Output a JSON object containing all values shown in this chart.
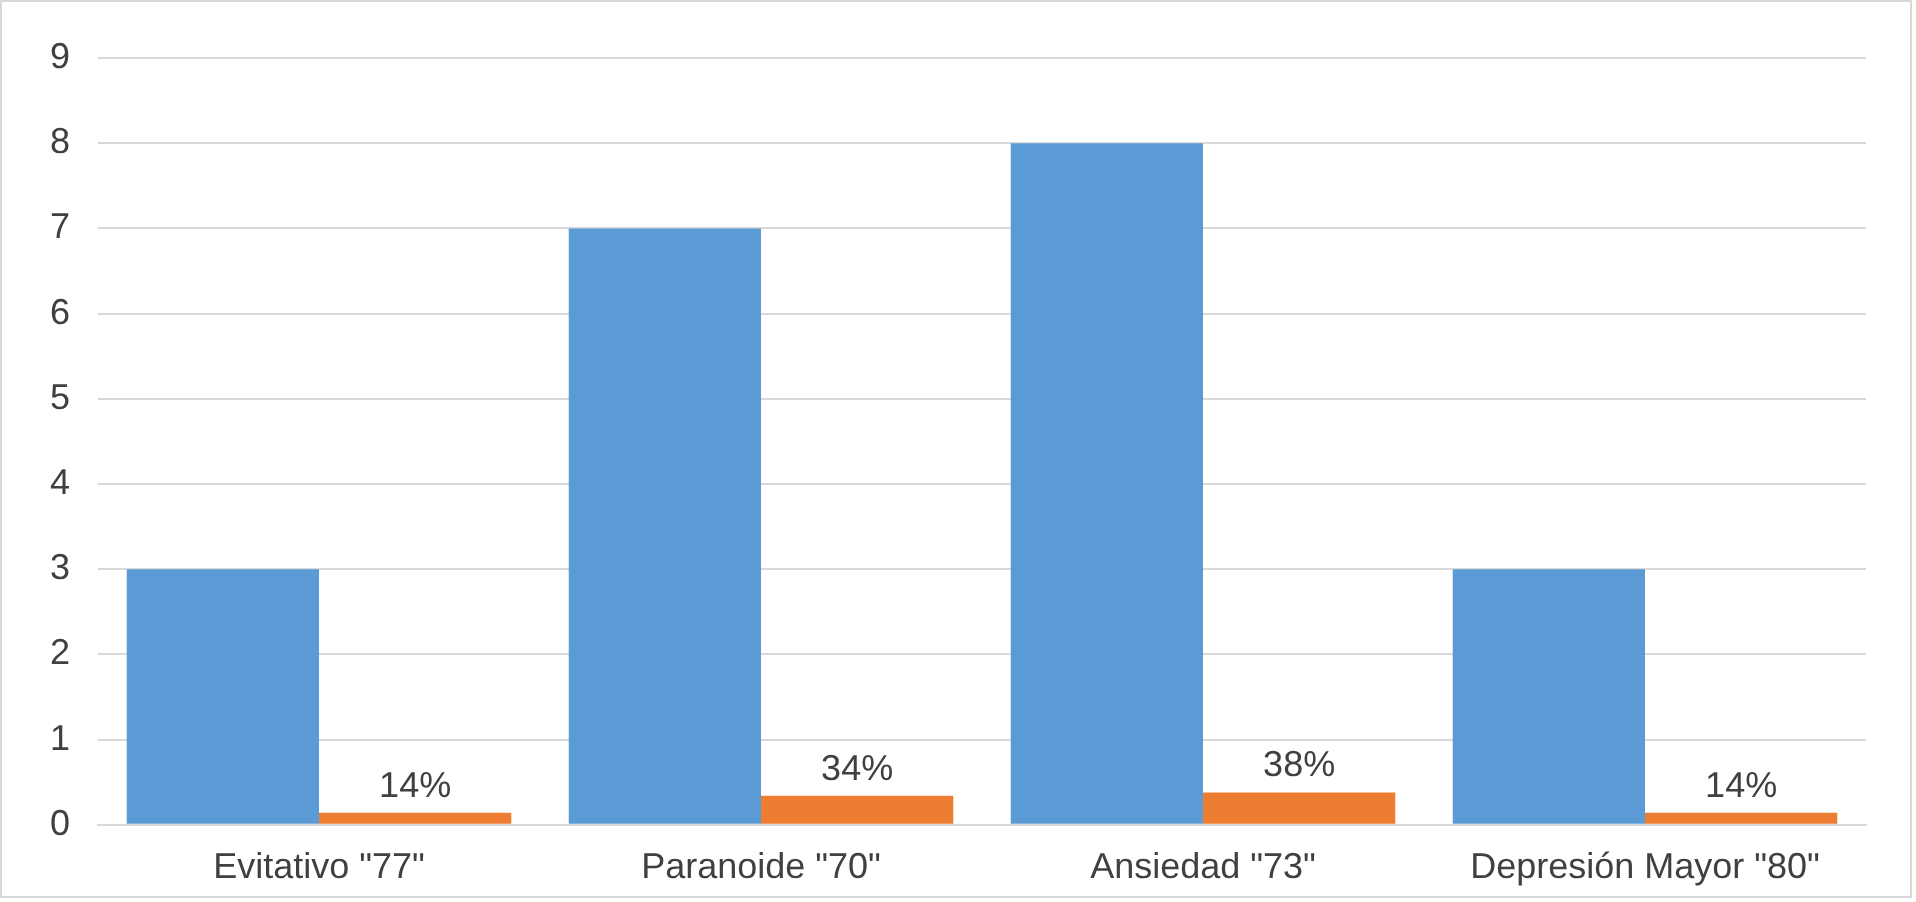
{
  "chart_data": {
    "type": "bar",
    "categories": [
      "Evitativo \"77\"",
      "Paranoide \"70\"",
      "Ansiedad \"73\"",
      "Depresión Mayor \"80\""
    ],
    "series": [
      {
        "color": "#5b9bd5",
        "values": [
          3,
          7,
          8,
          3
        ]
      },
      {
        "color": "#ed7d31",
        "values": [
          0.14,
          0.34,
          0.38,
          0.14
        ],
        "value_labels": [
          "14%",
          "34%",
          "38%",
          "14%"
        ]
      }
    ],
    "ylim": [
      0,
      9
    ],
    "yticks": [
      0,
      1,
      2,
      3,
      4,
      5,
      6,
      7,
      8,
      9
    ],
    "grid": "y",
    "legend": false
  }
}
